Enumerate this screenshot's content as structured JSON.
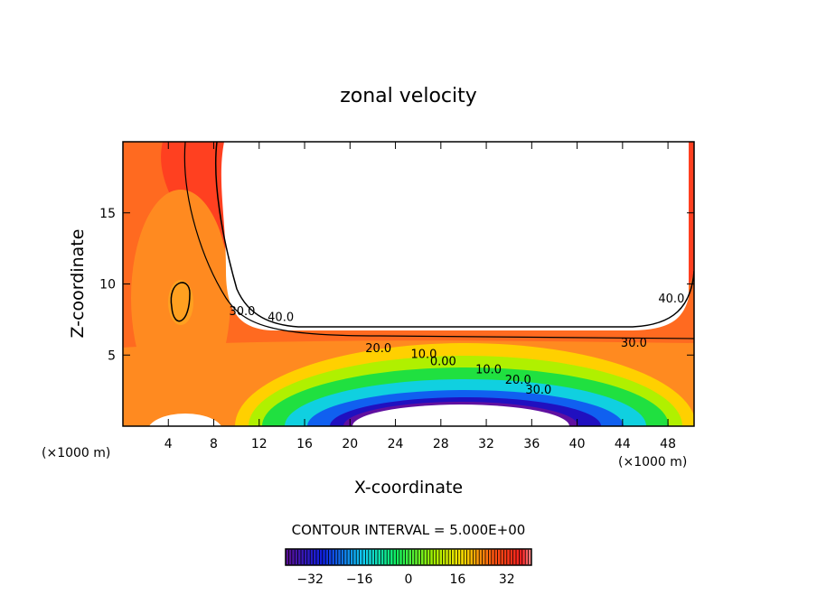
{
  "chart_data": {
    "type": "heatmap",
    "subtype": "filled contour",
    "title": "zonal velocity",
    "xlabel": "X-coordinate",
    "ylabel": "Z-coordinate",
    "x_unit_left": "(×1000 m)",
    "x_unit_right": "(×1000 m)",
    "xlim": [
      0,
      50.3
    ],
    "ylim": [
      0,
      20
    ],
    "xticks": [
      4,
      8,
      12,
      16,
      20,
      24,
      28,
      32,
      36,
      40,
      44,
      48
    ],
    "yticks": [
      5,
      10,
      15
    ],
    "contour_interval_text": "CONTOUR INTERVAL = 5.000E+00",
    "contour_labels": [
      {
        "text": "40.0",
        "x": 13.9,
        "z": 7.4
      },
      {
        "text": "30.0",
        "x": 10.5,
        "z": 7.8
      },
      {
        "text": "40.0",
        "x": 48.3,
        "z": 8.7
      },
      {
        "text": "30.0",
        "x": 45.0,
        "z": 5.6
      },
      {
        "text": "20.0",
        "x": 22.5,
        "z": 5.2
      },
      {
        "text": "10.0",
        "x": 26.5,
        "z": 4.8
      },
      {
        "text": "0.00",
        "x": 28.2,
        "z": 4.3
      },
      {
        "text": "10.0",
        "x": 32.2,
        "z": 3.7
      },
      {
        "text": "20.0",
        "x": 34.8,
        "z": 3.0
      },
      {
        "text": "30.0",
        "x": 36.6,
        "z": 2.3
      }
    ],
    "colorbar": {
      "range": [
        -40,
        40
      ],
      "ticks": [
        -32,
        -16,
        0,
        16,
        32
      ],
      "tick_labels": [
        "−32",
        "−16",
        "0",
        "16",
        "32"
      ]
    },
    "colors": {
      "min": "#5a1090",
      "max": "#ff9090"
    }
  }
}
